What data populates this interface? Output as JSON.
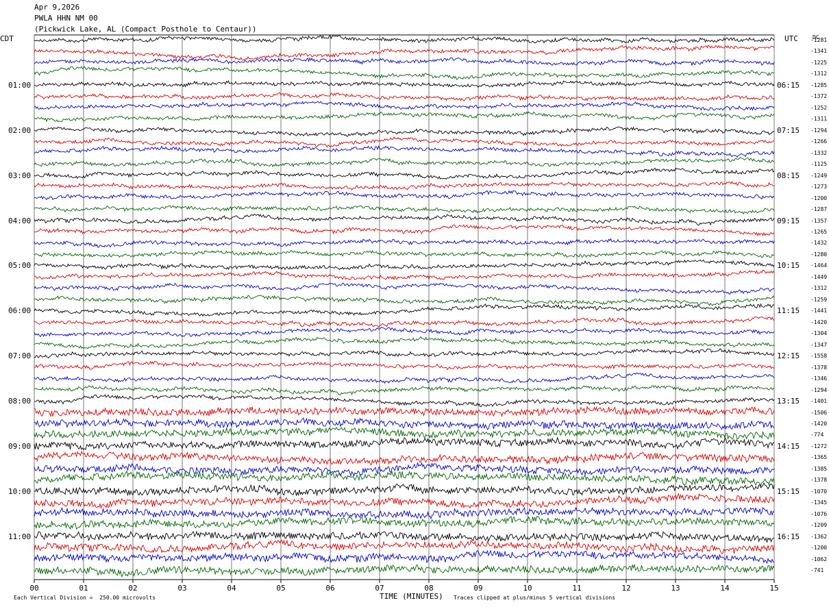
{
  "header": {
    "date": "Apr 9,2026",
    "station": "PWLA HHN NM 00",
    "location": "(Pickwick Lake, AL (Compact Posthole to Centaur))"
  },
  "left_axis_label": "CDT",
  "right_axis_label": "UTC",
  "dc_label": "DC",
  "footer": {
    "scale": "Each Vertical Division =  250.00 microvolts",
    "xlabel": "TIME (MINUTES)",
    "clip_note": "Traces clipped at plus/minus 5 vertical divisions"
  },
  "chart_data": {
    "type": "line",
    "title": "PWLA HHN NM 00",
    "xlabel": "TIME (MINUTES)",
    "xlim": [
      0,
      15
    ],
    "x_tick_labels": [
      "00",
      "01",
      "02",
      "03",
      "04",
      "05",
      "06",
      "07",
      "08",
      "09",
      "10",
      "11",
      "12",
      "13",
      "14",
      "15"
    ],
    "left_hour_labels": [
      "01:00",
      "02:00",
      "03:00",
      "04:00",
      "05:00",
      "06:00",
      "07:00",
      "08:00",
      "09:00",
      "10:00",
      "11:00"
    ],
    "right_hour_labels": [
      "06:15",
      "07:15",
      "08:15",
      "09:15",
      "10:15",
      "11:15",
      "12:15",
      "13:15",
      "14:15",
      "15:15",
      "16:15"
    ],
    "trace_colors": [
      "#000000",
      "#dd0000",
      "#0000cc",
      "#006600"
    ],
    "trace_dc_offsets": [
      -1281,
      -1341,
      -1225,
      -1312,
      -1285,
      -1372,
      -1252,
      -1311,
      -1294,
      -1266,
      -1332,
      -1125,
      -1249,
      -1273,
      -1200,
      -1287,
      -1357,
      -1265,
      -1432,
      -1280,
      -1464,
      -1449,
      -1312,
      -1259,
      -1441,
      -1420,
      -1304,
      -1347,
      -1558,
      -1378,
      -1346,
      -1294,
      -1401,
      -1506,
      -1420,
      -774,
      -1272,
      -1365,
      -1385,
      -1378,
      -1070,
      -1345,
      -1076,
      -1209,
      -1362,
      -1200,
      -1062,
      -741
    ]
  }
}
